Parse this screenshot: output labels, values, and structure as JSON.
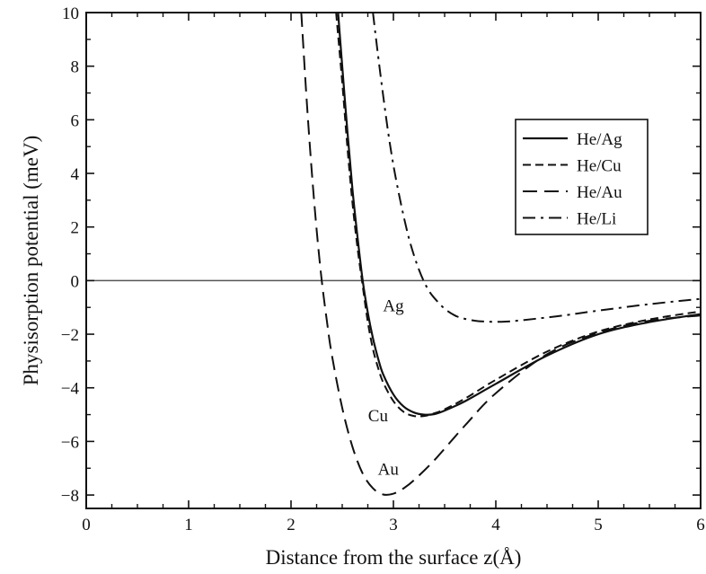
{
  "chart_data": {
    "type": "line",
    "xlabel": "Distance from the surface z(Å)",
    "ylabel": "Physisorption potential (meV)",
    "xlim": [
      0,
      6
    ],
    "ylim": [
      -8.5,
      10
    ],
    "xticks": [
      0,
      1,
      2,
      3,
      4,
      5,
      6
    ],
    "xtick_labels": [
      "0",
      "1",
      "2",
      "3",
      "4",
      "5",
      "6"
    ],
    "yticks": [
      -8,
      -6,
      -4,
      -2,
      0,
      2,
      4,
      6,
      8,
      10
    ],
    "ytick_labels": [
      "−8",
      "−6",
      "−4",
      "−2",
      "0",
      "2",
      "4",
      "6",
      "8",
      "10"
    ],
    "grid": false,
    "legend_position": "upper-right",
    "zero_line": true,
    "series": [
      {
        "name": "He/Ag",
        "label": "Ag",
        "line_style": "solid",
        "x": [
          2.46,
          2.5,
          2.55,
          2.6,
          2.65,
          2.7,
          2.75,
          2.8,
          2.85,
          2.9,
          3.0,
          3.1,
          3.2,
          3.3,
          3.4,
          3.5,
          3.7,
          4.0,
          4.5,
          5.0,
          5.5,
          6.0
        ],
        "y": [
          10,
          8.0,
          5.6,
          3.4,
          1.6,
          0.0,
          -1.2,
          -2.15,
          -2.9,
          -3.5,
          -4.25,
          -4.7,
          -4.92,
          -5.0,
          -4.98,
          -4.85,
          -4.5,
          -3.85,
          -2.8,
          -2.0,
          -1.55,
          -1.25
        ]
      },
      {
        "name": "He/Cu",
        "label": "Cu",
        "line_style": "dashed",
        "x": [
          2.44,
          2.5,
          2.55,
          2.6,
          2.65,
          2.7,
          2.75,
          2.8,
          2.85,
          2.9,
          3.0,
          3.1,
          3.2,
          3.3,
          3.4,
          3.5,
          3.7,
          4.0,
          4.5,
          5.0,
          5.5,
          6.0
        ],
        "y": [
          10,
          7.4,
          5.0,
          2.9,
          1.2,
          -0.2,
          -1.55,
          -2.55,
          -3.25,
          -3.8,
          -4.5,
          -4.9,
          -5.05,
          -5.05,
          -4.95,
          -4.8,
          -4.4,
          -3.7,
          -2.65,
          -1.9,
          -1.45,
          -1.15
        ]
      },
      {
        "name": "He/Au",
        "label": "Au",
        "line_style": "long-dashed",
        "x": [
          2.1,
          2.15,
          2.2,
          2.25,
          2.3,
          2.35,
          2.4,
          2.5,
          2.6,
          2.7,
          2.8,
          2.9,
          3.0,
          3.1,
          3.2,
          3.4,
          3.7,
          4.0,
          4.5,
          5.0,
          5.5,
          6.0
        ],
        "y": [
          10,
          6.9,
          4.2,
          1.9,
          0.0,
          -1.5,
          -2.8,
          -4.75,
          -6.2,
          -7.2,
          -7.75,
          -7.98,
          -7.95,
          -7.75,
          -7.45,
          -6.7,
          -5.4,
          -4.2,
          -2.75,
          -1.95,
          -1.5,
          -1.3
        ]
      },
      {
        "name": "He/Li",
        "label": "Li",
        "line_style": "dash-dot",
        "x": [
          2.8,
          2.85,
          2.9,
          2.95,
          3.0,
          3.05,
          3.1,
          3.15,
          3.2,
          3.25,
          3.3,
          3.35,
          3.4,
          3.5,
          3.6,
          3.7,
          3.8,
          3.9,
          4.0,
          4.1,
          4.2,
          4.4,
          4.7,
          5.0,
          5.5,
          6.0
        ],
        "y": [
          10,
          8.4,
          6.9,
          5.5,
          4.3,
          3.3,
          2.4,
          1.6,
          0.95,
          0.4,
          -0.05,
          -0.4,
          -0.65,
          -1.05,
          -1.3,
          -1.43,
          -1.5,
          -1.53,
          -1.54,
          -1.53,
          -1.5,
          -1.42,
          -1.28,
          -1.12,
          -0.88,
          -0.68
        ]
      }
    ]
  }
}
